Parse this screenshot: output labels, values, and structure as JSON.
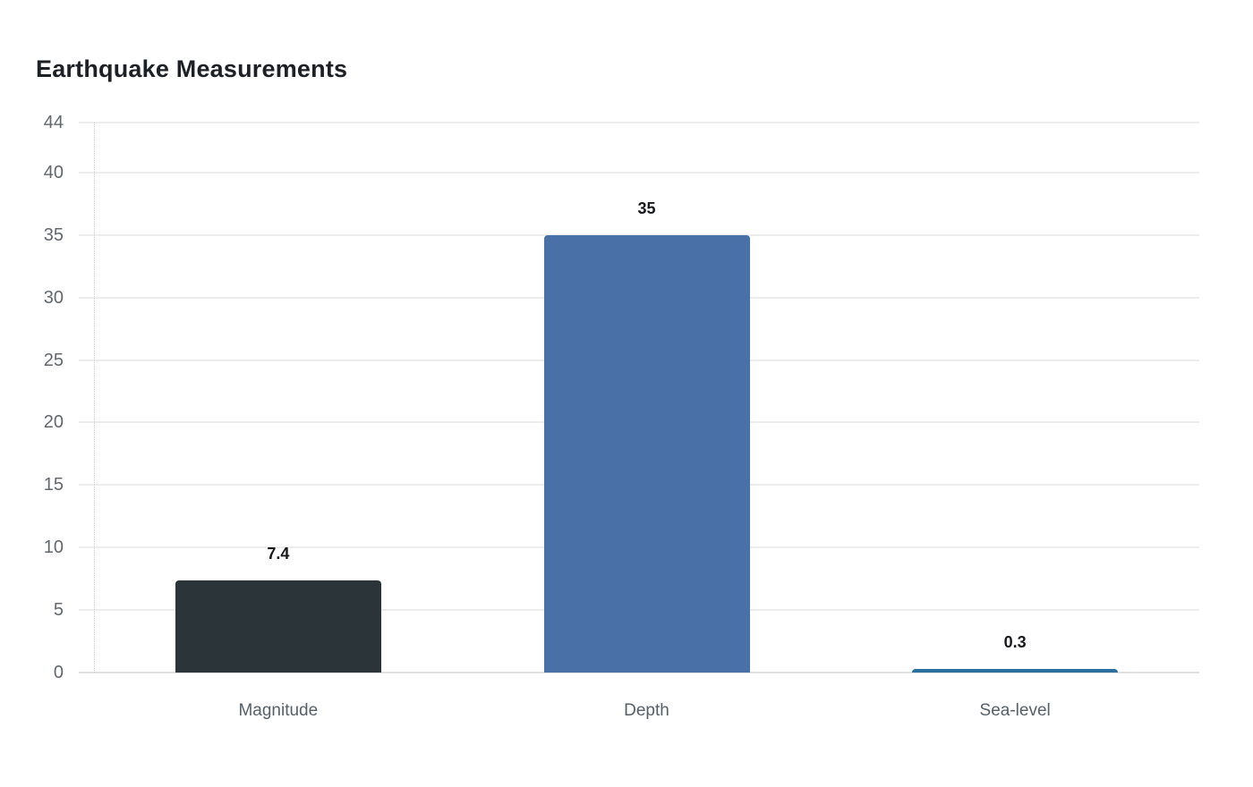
{
  "chart_data": {
    "type": "bar",
    "title": "Earthquake Measurements",
    "categories": [
      "Magnitude",
      "Depth",
      "Sea-level"
    ],
    "values": [
      7.4,
      35,
      0.3
    ],
    "value_labels": [
      "7.4",
      "35",
      "0.3"
    ],
    "bar_colors": [
      "#2b3439",
      "#4a70a8",
      "#2a6f9e"
    ],
    "yticks": [
      0,
      5,
      10,
      15,
      20,
      25,
      30,
      35,
      40,
      44
    ],
    "ylim": [
      0,
      44
    ],
    "xlabel": "",
    "ylabel": "",
    "grid": true,
    "legend": false
  },
  "style": {
    "background": "#ffffff",
    "title_color": "#1d2126",
    "grid_color": "#ededed",
    "zero_line_color": "#e0e0e0",
    "axis_line_color": "#d0d0d0",
    "ytick_label_color": "#63686e",
    "category_label_color": "#566069",
    "value_label_color": "#17191c"
  }
}
